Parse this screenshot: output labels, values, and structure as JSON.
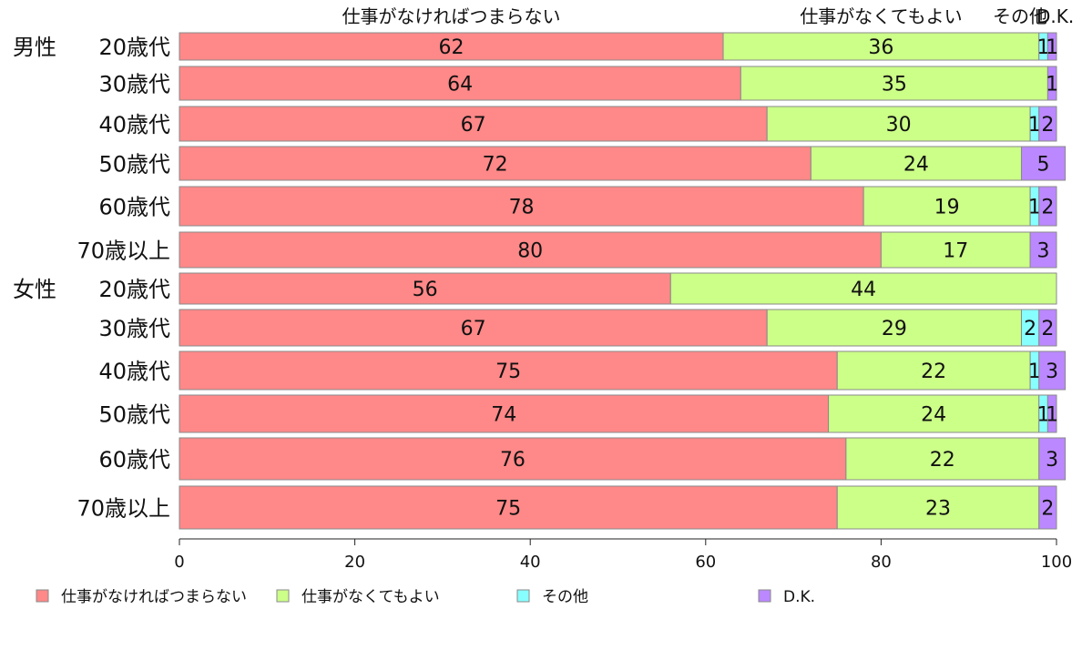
{
  "chart_data": {
    "type": "bar",
    "orientation": "horizontal",
    "stacked": true,
    "title": "",
    "xlabel": "",
    "ylabel": "",
    "xlim": [
      0,
      100
    ],
    "ticks": [
      "0",
      "20",
      "40",
      "60",
      "80",
      "100"
    ],
    "grid": false,
    "legend_position": "bottom",
    "top_labels": [
      "仕事がなければつまらない",
      "仕事がなくてもよい",
      "その他",
      "D.K."
    ],
    "groups": [
      {
        "name": "男性",
        "start": 0
      },
      {
        "name": "女性",
        "start": 6
      }
    ],
    "categories": [
      "20歳代",
      "30歳代",
      "40歳代",
      "50歳代",
      "60歳代",
      "70歳以上",
      "20歳代",
      "30歳代",
      "40歳代",
      "50歳代",
      "60歳代",
      "70歳以上"
    ],
    "series": [
      {
        "name": "仕事がなければつまらない",
        "color": "#ff8888",
        "values": [
          62,
          64,
          67,
          72,
          78,
          80,
          56,
          67,
          75,
          74,
          76,
          75
        ]
      },
      {
        "name": "仕事がなくてもよい",
        "color": "#ccff88",
        "values": [
          36,
          35,
          30,
          24,
          19,
          17,
          44,
          29,
          22,
          24,
          22,
          23
        ]
      },
      {
        "name": "その他",
        "color": "#88ffff",
        "values": [
          1,
          0,
          1,
          0,
          1,
          0,
          0,
          2,
          1,
          1,
          0,
          0
        ]
      },
      {
        "name": "D.K.",
        "color": "#bb88ff",
        "values": [
          1,
          1,
          2,
          5,
          2,
          3,
          0,
          2,
          3,
          1,
          3,
          2
        ]
      }
    ]
  }
}
